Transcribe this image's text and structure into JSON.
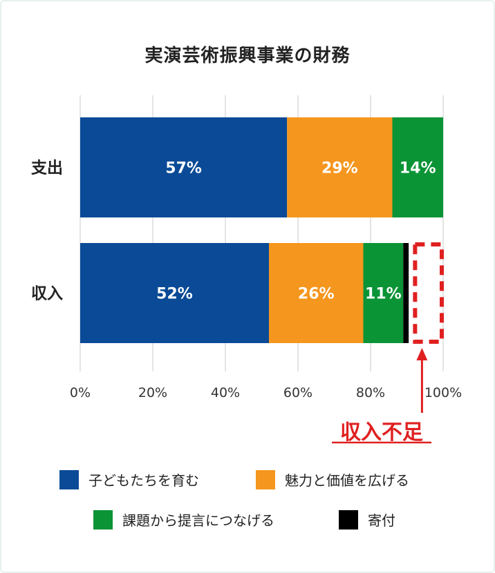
{
  "chart_data": {
    "type": "bar",
    "orientation": "horizontal",
    "stacked": true,
    "title": "実演芸術振興事業の財務",
    "categories": [
      "支出",
      "収入"
    ],
    "series": [
      {
        "name": "子どもたちを育む",
        "color": "#0a4a96",
        "values": [
          57,
          52
        ],
        "labels": [
          "57%",
          "52%"
        ]
      },
      {
        "name": "魅力と価値を広げる",
        "color": "#f5961e",
        "values": [
          29,
          26
        ],
        "labels": [
          "29%",
          "26%"
        ]
      },
      {
        "name": "課題から提言につなげる",
        "color": "#0a9436",
        "values": [
          14,
          11
        ],
        "labels": [
          "14%",
          "11%"
        ]
      },
      {
        "name": "寄付",
        "color": "#000000",
        "values": [
          0,
          1.5
        ],
        "labels": [
          "",
          ""
        ]
      }
    ],
    "xlim": [
      0,
      100
    ],
    "x_ticks": [
      "0%",
      "20%",
      "40%",
      "60%",
      "80%",
      "100%"
    ],
    "x_tick_values": [
      0,
      20,
      40,
      60,
      80,
      100
    ],
    "grid": true,
    "legend_position": "bottom",
    "annotation": {
      "text": "収入不足",
      "category": "収入",
      "from": 91.5,
      "to": 100,
      "color": "#e02020"
    }
  }
}
